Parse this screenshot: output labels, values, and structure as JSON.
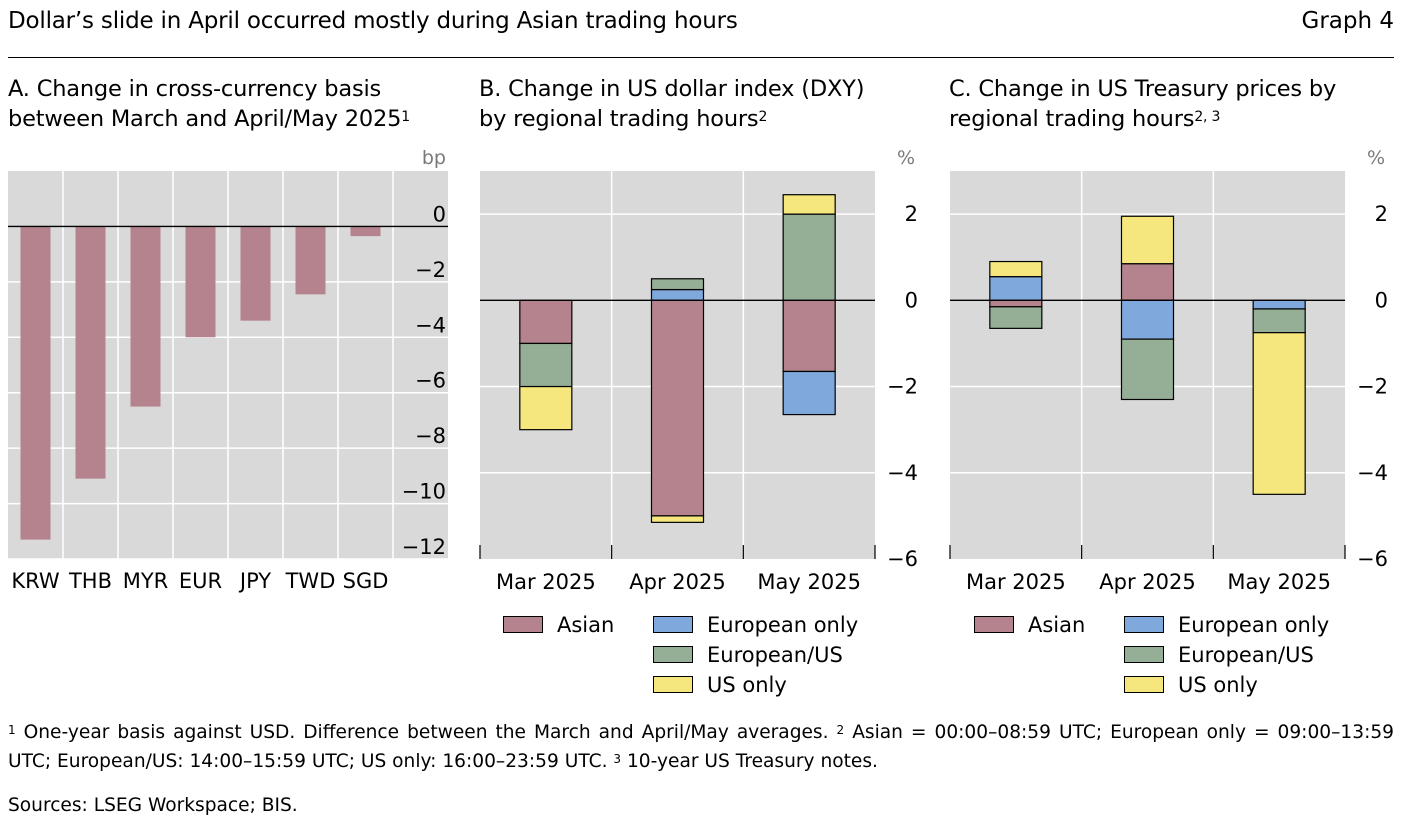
{
  "header": {
    "title": "Dollar’s slide in April occurred mostly during Asian trading hours",
    "graph_label": "Graph 4"
  },
  "panels": {
    "A": {
      "title_line1": "A. Change in cross-currency basis",
      "title_line2": "between March and April/May 2025",
      "title_sup": "1",
      "unit": "bp"
    },
    "B": {
      "title_line1": "B. Change in US dollar index (DXY)",
      "title_line2": "by regional trading hours",
      "title_sup": "2",
      "unit": "%"
    },
    "C": {
      "title_line1": "C. Change in US Treasury prices by",
      "title_line2": "regional trading hours",
      "title_sup": "2, 3",
      "unit": "%"
    }
  },
  "legend": {
    "asian": "Asian",
    "european_only": "European only",
    "european_us": "European/US",
    "us_only": "US only"
  },
  "colors": {
    "plot_bg": "#d9d9d9",
    "grid": "#ffffff",
    "bar_a": "#b5838e",
    "asian": "#b5838e",
    "european_only": "#7fa9dc",
    "european_us": "#95af96",
    "us_only": "#f5e77e"
  },
  "chart_data": [
    {
      "type": "bar",
      "unit": "bp",
      "categories": [
        "KRW",
        "THB",
        "MYR",
        "EUR",
        "JPY",
        "TWD",
        "SGD"
      ],
      "values": [
        -11.3,
        -9.1,
        -6.5,
        -4.0,
        -3.4,
        -2.45,
        -0.35
      ],
      "ylim": [
        -12,
        2
      ],
      "yticks": [
        0,
        -2,
        -4,
        -6,
        -8,
        -10,
        -12
      ],
      "ytick_labels": [
        "0",
        "−2",
        "−4",
        "−6",
        "−8",
        "−10",
        "−12"
      ],
      "grid": true
    },
    {
      "type": "bar",
      "stacked": true,
      "unit": "%",
      "categories": [
        "Mar 2025",
        "Apr 2025",
        "May 2025"
      ],
      "series": [
        {
          "name": "Asian",
          "values": [
            -1.0,
            -5.0,
            -1.65
          ]
        },
        {
          "name": "European only",
          "values": [
            0.0,
            0.25,
            -1.0
          ]
        },
        {
          "name": "European/US",
          "values": [
            -1.0,
            0.25,
            2.0
          ]
        },
        {
          "name": "US only",
          "values": [
            -1.0,
            -0.15,
            0.45
          ]
        }
      ],
      "ylim": [
        -6,
        3
      ],
      "yticks": [
        2,
        0,
        -2,
        -4,
        -6
      ],
      "ytick_labels": [
        "2",
        "0",
        "−2",
        "−4",
        "−6"
      ],
      "grid": true
    },
    {
      "type": "bar",
      "stacked": true,
      "unit": "%",
      "categories": [
        "Mar 2025",
        "Apr 2025",
        "May 2025"
      ],
      "series": [
        {
          "name": "Asian",
          "values": [
            -0.15,
            0.85,
            0.0
          ]
        },
        {
          "name": "European only",
          "values": [
            0.55,
            -0.9,
            -0.2
          ]
        },
        {
          "name": "European/US",
          "values": [
            -0.5,
            -1.4,
            -0.55
          ]
        },
        {
          "name": "US only",
          "values": [
            0.35,
            1.1,
            -3.75
          ]
        }
      ],
      "ylim": [
        -6,
        3
      ],
      "yticks": [
        2,
        0,
        -2,
        -4,
        -6
      ],
      "ytick_labels": [
        "2",
        "0",
        "−2",
        "−4",
        "−6"
      ],
      "grid": true
    }
  ],
  "footnotes": {
    "n1_mark": "1",
    "n1": "One-year basis against USD. Difference between the March and April/May averages.",
    "n2_mark": "2",
    "n2": "Asian = 00:00–08:59 UTC; European only = 09:00–13:59 UTC; European/US: 14:00–15:59 UTC; US only: 16:00–23:59 UTC.",
    "n3_mark": "3",
    "n3": "10-year US Treasury notes.",
    "sources": "Sources: LSEG Workspace; BIS."
  }
}
